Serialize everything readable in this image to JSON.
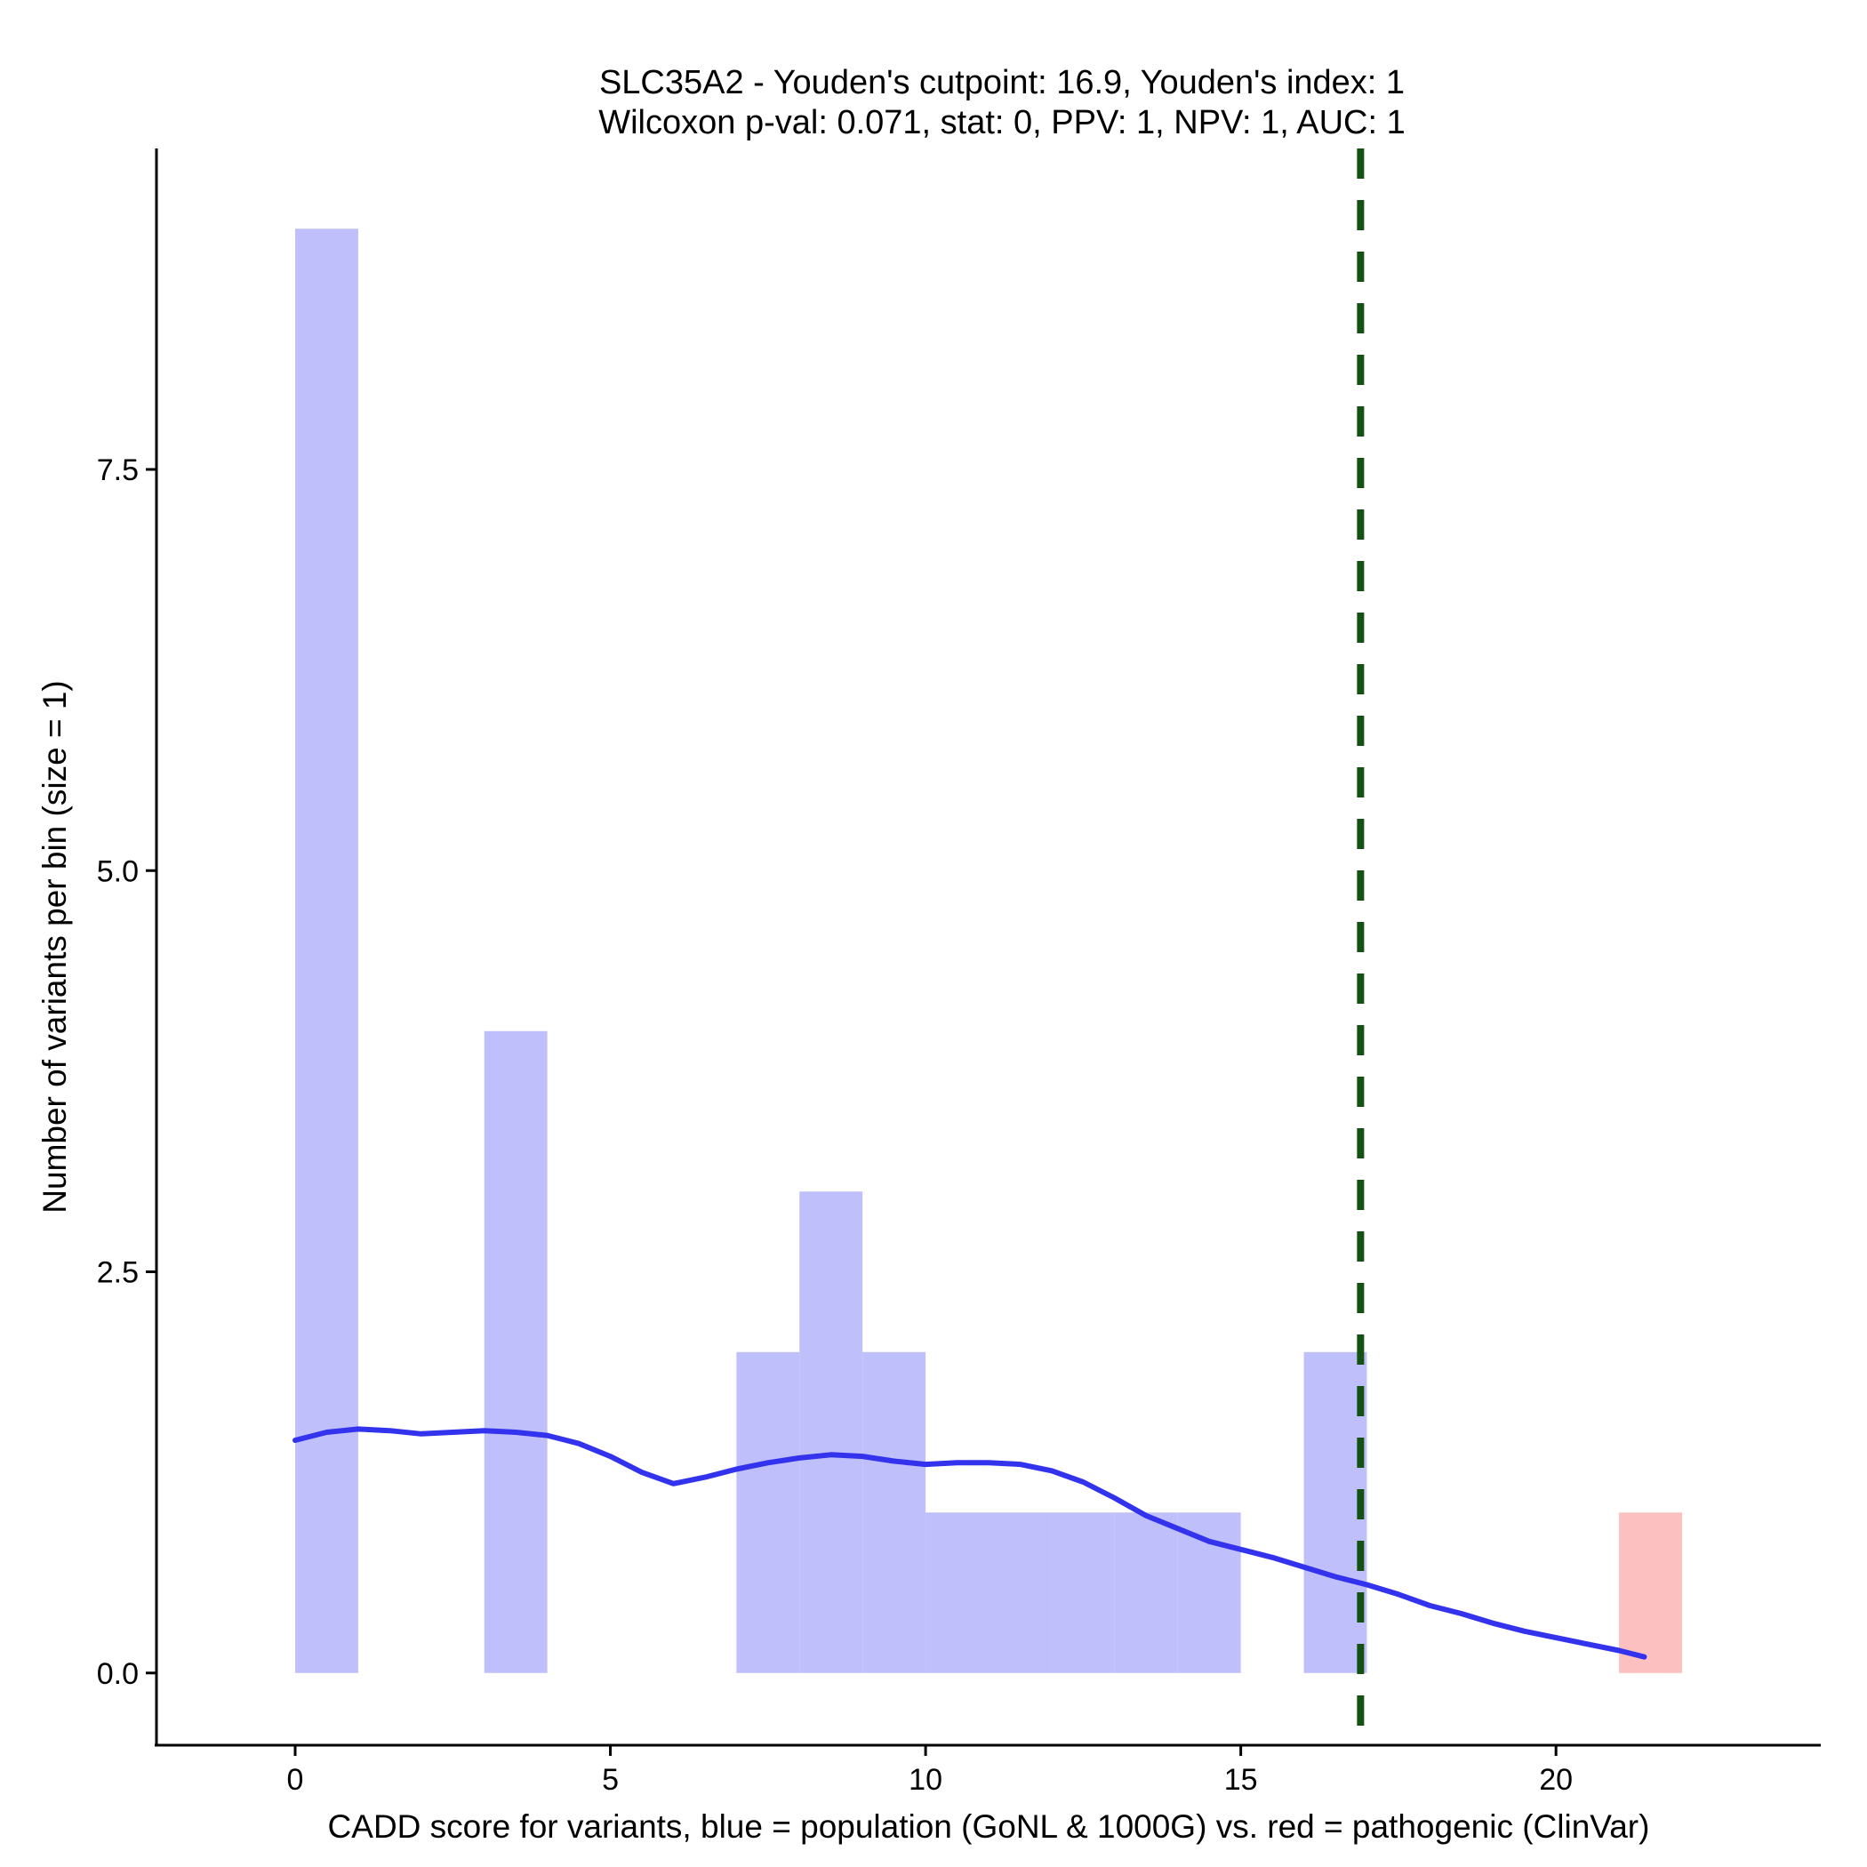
{
  "chart_data": {
    "type": "bar",
    "title": "SLC35A2 - Youden's cutpoint: 16.9, Youden's index: 1",
    "subtitle": "Wilcoxon p-val: 0.071, stat: 0, PPV: 1, NPV: 1, AUC: 1",
    "xlabel": "CADD score for variants, blue = population (GoNL & 1000G) vs. red = pathogenic (ClinVar)",
    "ylabel": "Number of variants per bin (size = 1)",
    "xlim": [
      -2.2,
      24.2
    ],
    "ylim": [
      -0.45,
      9.5
    ],
    "x_ticks": [
      0,
      5,
      10,
      15,
      20
    ],
    "x_tick_labels": [
      "0",
      "5",
      "10",
      "15",
      "20"
    ],
    "y_ticks": [
      0,
      2.5,
      5,
      7.5
    ],
    "y_tick_labels": [
      "0.0",
      "2.5",
      "5.0",
      "7.5"
    ],
    "series": [
      {
        "name": "population (GoNL & 1000G)",
        "color": "#bfbffc",
        "bins": [
          {
            "start": 0,
            "end": 1,
            "count": 9
          },
          {
            "start": 3,
            "end": 4,
            "count": 4
          },
          {
            "start": 7,
            "end": 8,
            "count": 2
          },
          {
            "start": 8,
            "end": 9,
            "count": 3
          },
          {
            "start": 9,
            "end": 10,
            "count": 2
          },
          {
            "start": 10,
            "end": 11,
            "count": 1
          },
          {
            "start": 11,
            "end": 12,
            "count": 1
          },
          {
            "start": 12,
            "end": 13,
            "count": 1
          },
          {
            "start": 13,
            "end": 14,
            "count": 1
          },
          {
            "start": 14,
            "end": 15,
            "count": 1
          },
          {
            "start": 16,
            "end": 17,
            "count": 2
          }
        ]
      },
      {
        "name": "pathogenic (ClinVar)",
        "color": "#fdc0c0",
        "bins": [
          {
            "start": 21,
            "end": 22,
            "count": 1
          }
        ]
      }
    ],
    "smooth_line": {
      "color": "#3333ee",
      "x": [
        0,
        0.5,
        1,
        1.5,
        2,
        2.5,
        3,
        3.5,
        4,
        4.5,
        5,
        5.5,
        6,
        6.5,
        7,
        7.5,
        8,
        8.5,
        9,
        9.5,
        10,
        10.5,
        11,
        11.5,
        12,
        12.5,
        13,
        13.5,
        14,
        14.5,
        15,
        15.5,
        16,
        16.5,
        17,
        17.5,
        18,
        18.5,
        19,
        19.5,
        20,
        20.5,
        21,
        21.4
      ],
      "y": [
        1.45,
        1.5,
        1.52,
        1.51,
        1.49,
        1.5,
        1.51,
        1.5,
        1.48,
        1.43,
        1.35,
        1.25,
        1.18,
        1.22,
        1.27,
        1.31,
        1.34,
        1.36,
        1.35,
        1.32,
        1.3,
        1.31,
        1.31,
        1.3,
        1.26,
        1.19,
        1.09,
        0.98,
        0.9,
        0.82,
        0.77,
        0.72,
        0.66,
        0.6,
        0.55,
        0.49,
        0.42,
        0.37,
        0.31,
        0.26,
        0.22,
        0.18,
        0.14,
        0.1
      ]
    },
    "cutpoint": {
      "value": 16.9,
      "color": "#145214",
      "style": "dashed"
    },
    "grid": false,
    "legend": "none"
  }
}
